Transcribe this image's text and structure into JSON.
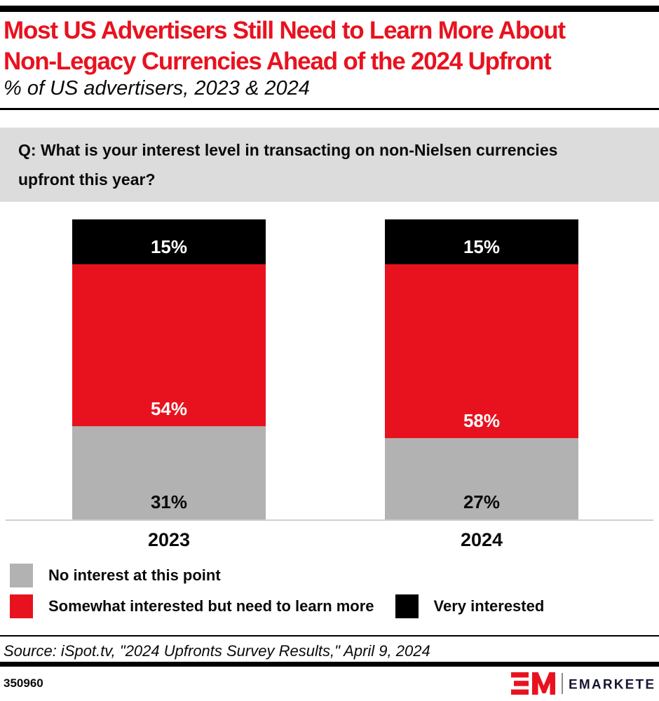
{
  "header": {
    "title_line1": "Most US Advertisers Still Need to Learn More About",
    "title_line2": "Non-Legacy Currencies Ahead of the 2024 Upfront",
    "subtitle": "% of US advertisers, 2023 & 2024"
  },
  "question": {
    "line1": "Q: What is your interest level in transacting on non-Nielsen currencies",
    "line2": "upfront this year?"
  },
  "chart_data": {
    "type": "bar",
    "stacked": true,
    "categories": [
      "2023",
      "2024"
    ],
    "series": [
      {
        "name": "No interest at this point",
        "color": "#b2b2b2",
        "label_color": "#0a0a0a",
        "values": [
          31,
          27
        ]
      },
      {
        "name": "Somewhat interested but need to learn more",
        "color": "#e8121f",
        "label_color": "#ffffff",
        "values": [
          54,
          58
        ]
      },
      {
        "name": "Very interested",
        "color": "#000000",
        "label_color": "#ffffff",
        "values": [
          15,
          15
        ]
      }
    ],
    "unit": "%",
    "ylim": [
      0,
      100
    ],
    "grid": false,
    "legend_position": "bottom",
    "title": "Most US Advertisers Still Need to Learn More About Non-Legacy Currencies Ahead of the 2024 Upfront",
    "xlabel": "",
    "ylabel": "% of US advertisers"
  },
  "source": {
    "text": "Source: iSpot.tv, \"2024 Upfronts Survey Results,\" April 9, 2024"
  },
  "footer": {
    "chart_id": "350960",
    "brand": "EMARKETER"
  },
  "colors": {
    "accent_red": "#e8121f",
    "bar_gray": "#b2b2b2",
    "bar_black": "#000000",
    "question_bg": "#dcdcdc",
    "axis_line": "#cfcfcf",
    "brand_navy": "#161632"
  }
}
